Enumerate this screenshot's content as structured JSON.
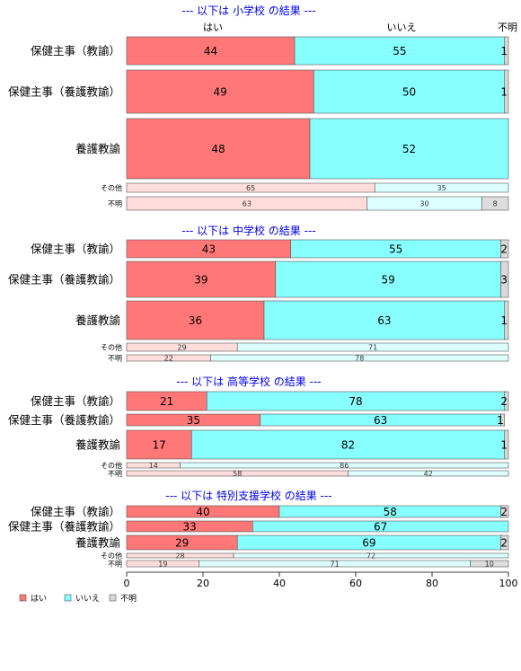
{
  "chart_data": {
    "type": "bar",
    "orientation": "horizontal",
    "stacked": true,
    "xlim": [
      0,
      100
    ],
    "x_ticks": [
      0,
      20,
      40,
      60,
      80,
      100
    ],
    "header_labels": [
      "はい",
      "いいえ",
      "不明"
    ],
    "legend": {
      "placement": "bottom-left",
      "entries": [
        "はい",
        "いいえ",
        "不明"
      ]
    },
    "colors": {
      "yes": "#ff7777",
      "no": "#88ffff",
      "unknown": "#d9d9d9",
      "yes_light": "#ffdddd",
      "no_light": "#ddffff",
      "unknown_light": "#dddddd",
      "title": "#0000ee"
    },
    "panels": [
      {
        "title": "--- 以下は 小学校 の結果 ---",
        "rows": [
          {
            "label": "保健主事（教諭）",
            "values": [
              44,
              55,
              1
            ],
            "labels": [
              "44",
              "55",
              "1"
            ],
            "small": false
          },
          {
            "label": "保健主事（養護教諭）",
            "values": [
              49,
              50,
              1
            ],
            "labels": [
              "49",
              "50",
              "1"
            ],
            "small": false
          },
          {
            "label": "養護教諭",
            "values": [
              48,
              52,
              1
            ],
            "labels": [
              "48",
              "52",
              "1"
            ],
            "small": false
          },
          {
            "label": "その他",
            "values": [
              65,
              35,
              0
            ],
            "labels": [
              "65",
              "35",
              ""
            ],
            "small": true
          },
          {
            "label": "不明",
            "values": [
              63,
              30,
              8
            ],
            "labels": [
              "63",
              "30",
              "8"
            ],
            "small": true
          }
        ]
      },
      {
        "title": "--- 以下は 中学校 の結果 ---",
        "rows": [
          {
            "label": "保健主事（教諭）",
            "values": [
              43,
              55,
              2
            ],
            "labels": [
              "43",
              "55",
              "2"
            ],
            "small": false
          },
          {
            "label": "保健主事（養護教諭）",
            "values": [
              39,
              59,
              3
            ],
            "labels": [
              "39",
              "59",
              "3"
            ],
            "small": false
          },
          {
            "label": "養護教諭",
            "values": [
              36,
              63,
              1
            ],
            "labels": [
              "36",
              "63",
              "1"
            ],
            "small": false
          },
          {
            "label": "その他",
            "values": [
              29,
              71,
              0
            ],
            "labels": [
              "29",
              "71",
              ""
            ],
            "small": true
          },
          {
            "label": "不明",
            "values": [
              22,
              78,
              0
            ],
            "labels": [
              "22",
              "78",
              ""
            ],
            "small": true
          }
        ]
      },
      {
        "title": "--- 以下は 高等学校 の結果 ---",
        "rows": [
          {
            "label": "保健主事（教諭）",
            "values": [
              21,
              78,
              2
            ],
            "labels": [
              "21",
              "78",
              "2"
            ],
            "small": false
          },
          {
            "label": "保健主事（養護教諭）",
            "values": [
              35,
              63,
              1
            ],
            "labels": [
              "35",
              "63",
              "1"
            ],
            "small": false
          },
          {
            "label": "養護教諭",
            "values": [
              17,
              82,
              1
            ],
            "labels": [
              "17",
              "82",
              "1"
            ],
            "small": false
          },
          {
            "label": "その他",
            "values": [
              14,
              86,
              0
            ],
            "labels": [
              "14",
              "86",
              ""
            ],
            "small": true
          },
          {
            "label": "不明",
            "values": [
              58,
              42,
              0
            ],
            "labels": [
              "58",
              "42",
              ""
            ],
            "small": true
          }
        ]
      },
      {
        "title": "--- 以下は 特別支援学校 の結果 ---",
        "rows": [
          {
            "label": "保健主事（教諭）",
            "values": [
              40,
              58,
              2
            ],
            "labels": [
              "40",
              "58",
              "2"
            ],
            "small": false
          },
          {
            "label": "保健主事（養護教諭）",
            "values": [
              33,
              67,
              0
            ],
            "labels": [
              "33",
              "67",
              ""
            ],
            "small": false
          },
          {
            "label": "養護教諭",
            "values": [
              29,
              69,
              2
            ],
            "labels": [
              "29",
              "69",
              "2"
            ],
            "small": false
          },
          {
            "label": "その他",
            "values": [
              28,
              72,
              0
            ],
            "labels": [
              "28",
              "72",
              ""
            ],
            "small": true
          },
          {
            "label": "不明",
            "values": [
              19,
              71,
              10
            ],
            "labels": [
              "19",
              "71",
              "10"
            ],
            "small": true
          }
        ]
      }
    ]
  }
}
